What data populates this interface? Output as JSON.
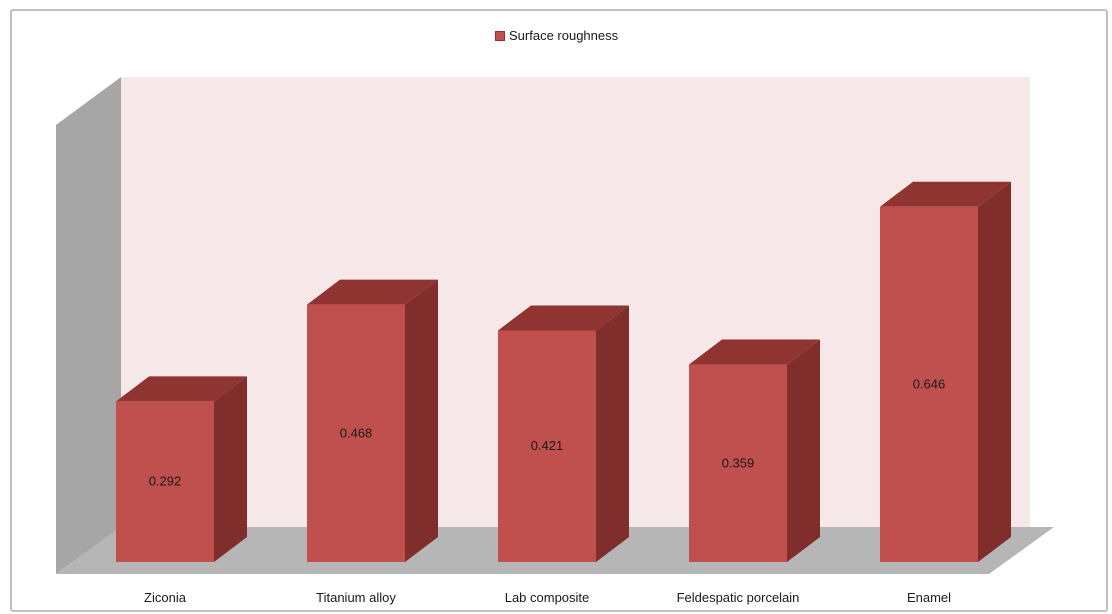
{
  "chart_data": {
    "type": "bar",
    "categories": [
      "Ziconia",
      "Titanium alloy",
      "Lab composite",
      "Feldespatic porcelain",
      "Enamel"
    ],
    "series": [
      {
        "name": "Surface roughness",
        "values": [
          0.292,
          0.468,
          0.421,
          0.359,
          0.646
        ]
      }
    ],
    "ylim": [
      0,
      0.75
    ],
    "grid": false,
    "legend": "top-center",
    "colors": {
      "bar_front": "#c0504d",
      "bar_side": "#7f2e2c",
      "bar_top": "#8f3431",
      "back_wall": "#f6e8e8",
      "left_wall": "#a6a6a6",
      "floor": "#b6b6b6"
    }
  }
}
